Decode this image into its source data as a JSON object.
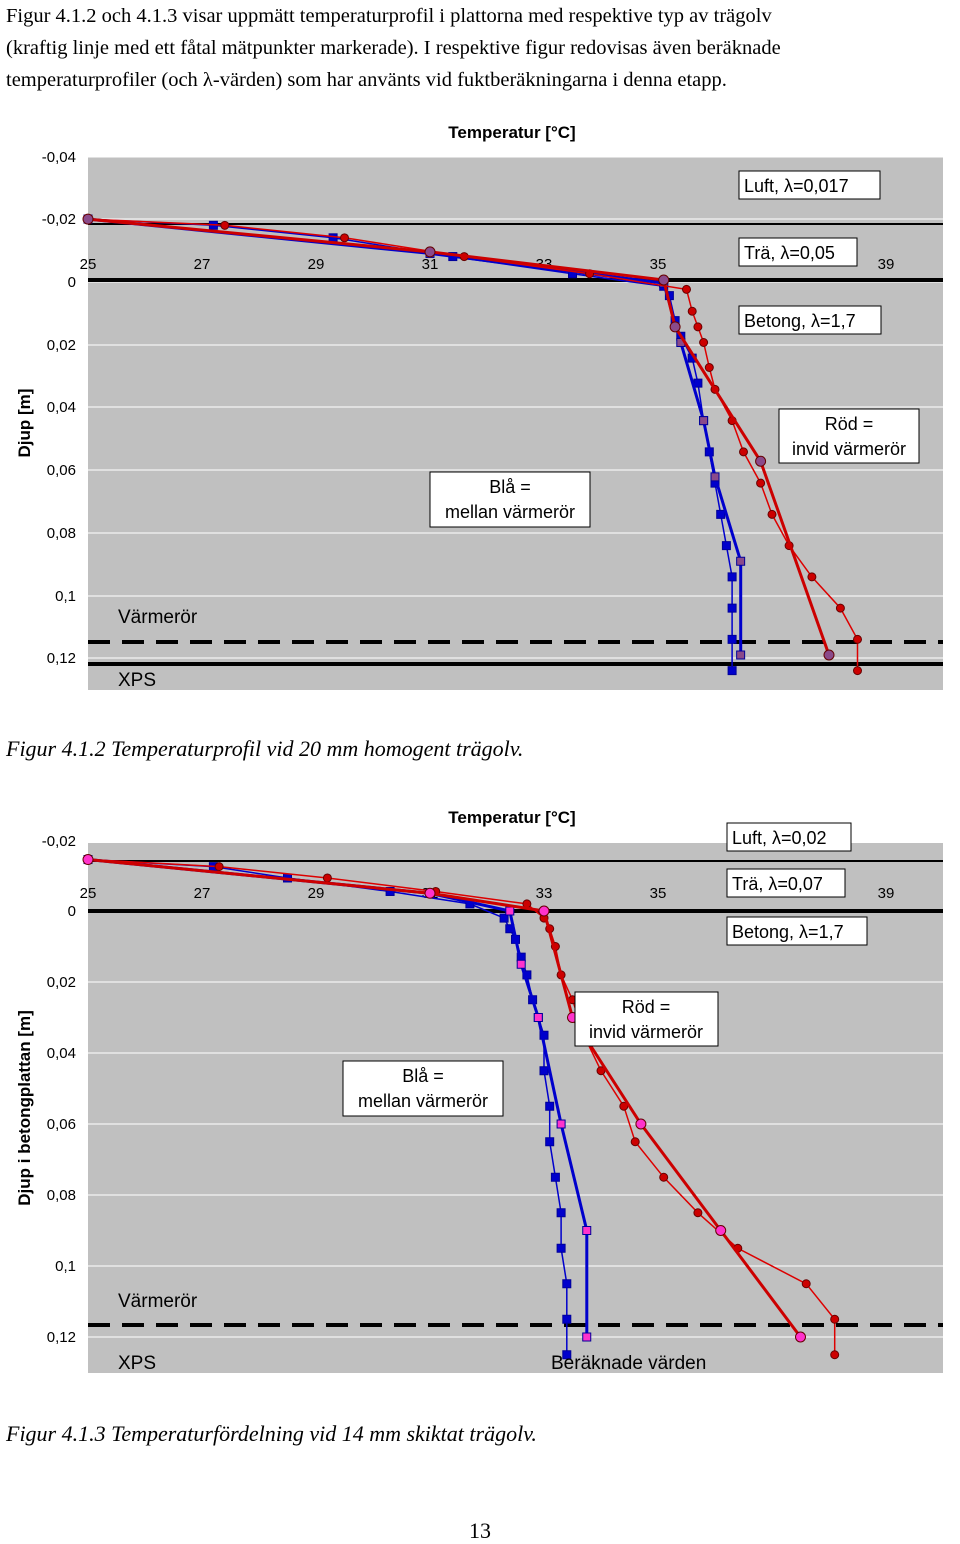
{
  "intro": {
    "lines": [
      "Figur 4.1.2 och 4.1.3 visar uppmätt temperaturprofil i plattorna med respektive typ av trägolv",
      "(kraftig linje med ett fåtal mätpunkter markerade). I respektive figur redovisas även beräknade",
      "temperaturprofiler (och λ-värden) som har använts vid fuktberäkningarna i denna etapp."
    ]
  },
  "figures": [
    {
      "caption": "Figur 4.1.2  Temperaturprofil vid 20 mm homogent trägolv.",
      "labels": {
        "title": "Temperatur [°C]",
        "ylabel": "Djup [m]",
        "luft": "Luft, λ=0,017",
        "tra": "Trä, λ=0,05",
        "betong": "Betong, λ=1,7",
        "red_note_1": "Röd =",
        "red_note_2": "invid värmerör",
        "blue_note_1": "Blå =",
        "blue_note_2": "mellan värmerör",
        "varmeror": "Värmerör",
        "xps": "XPS"
      }
    },
    {
      "caption": "Figur 4.1.3  Temperaturfördelning vid 14 mm skiktat trägolv.",
      "labels": {
        "title": "Temperatur [°C]",
        "ylabel": "Djup i betongplattan [m]",
        "luft": "Luft, λ=0,02",
        "tra": "Trä, λ=0,07",
        "betong": "Betong, λ=1,7",
        "red_note_1": "Röd =",
        "red_note_2": "invid värmerör",
        "blue_note_1": "Blå =",
        "blue_note_2": "mellan värmerör",
        "varmeror": "Värmerör",
        "xps": "XPS",
        "beraknade": "Beräknade värden"
      }
    }
  ],
  "page_number": "13",
  "colors": {
    "plot_bg": "#c0c0c0",
    "grid": "#ffffff",
    "blue": "#0000cc",
    "red": "#dd0000",
    "measured_red": "#cc0000",
    "marker_dark_blue": "#000099",
    "marker_red": "#cc0000",
    "marker_magenta": "#ff33cc",
    "marker_purple": "#8a4a8a"
  },
  "chart_data": [
    {
      "type": "line",
      "title": "Temperatur [°C]",
      "ylabel": "Djup [m]",
      "x_ticks": [
        "25",
        "27",
        "29",
        "31",
        "33",
        "35",
        "39"
      ],
      "y_ticks": [
        "-0,04",
        "-0,02",
        "0",
        "0,02",
        "0,04",
        "0,06",
        "0,08",
        "0,1",
        "0,12"
      ],
      "xlim": [
        25,
        39
      ],
      "ylim": [
        -0.04,
        0.13
      ],
      "y_inverted": true,
      "grid": true,
      "series": [
        {
          "name": "Blå = mellan värmerör",
          "role": "calculated",
          "color": "blue",
          "points": [
            [
              25,
              -0.0195
            ],
            [
              27.2,
              -0.0175
            ],
            [
              29.3,
              -0.0135
            ],
            [
              31.4,
              -0.0075
            ],
            [
              33.5,
              -0.002
            ],
            [
              35.1,
              0.002
            ],
            [
              35.2,
              0.005
            ],
            [
              35.3,
              0.013
            ],
            [
              35.4,
              0.018
            ],
            [
              35.6,
              0.025
            ],
            [
              35.7,
              0.033
            ],
            [
              35.8,
              0.045
            ],
            [
              35.9,
              0.055
            ],
            [
              36.0,
              0.065
            ],
            [
              36.1,
              0.075
            ],
            [
              36.2,
              0.085
            ],
            [
              36.3,
              0.095
            ],
            [
              36.3,
              0.105
            ],
            [
              36.3,
              0.115
            ],
            [
              36.3,
              0.125
            ]
          ]
        },
        {
          "name": "Blå = mellan värmerör",
          "role": "measured",
          "color": "blue",
          "points": [
            [
              25,
              -0.0195
            ],
            [
              31,
              -0.0085
            ],
            [
              35.1,
              0.001
            ],
            [
              35.4,
              0.02
            ],
            [
              35.8,
              0.045
            ],
            [
              36.0,
              0.063
            ],
            [
              36.45,
              0.09
            ],
            [
              36.45,
              0.12
            ]
          ]
        },
        {
          "name": "Röd = invid värmerör",
          "role": "calculated",
          "color": "red",
          "points": [
            [
              25,
              -0.0195
            ],
            [
              27.4,
              -0.0175
            ],
            [
              29.5,
              -0.0135
            ],
            [
              31.6,
              -0.0075
            ],
            [
              33.8,
              -0.002
            ],
            [
              35.5,
              0.003
            ],
            [
              35.6,
              0.01
            ],
            [
              35.7,
              0.015
            ],
            [
              35.8,
              0.02
            ],
            [
              35.9,
              0.028
            ],
            [
              36.0,
              0.035
            ],
            [
              36.3,
              0.045
            ],
            [
              36.5,
              0.055
            ],
            [
              36.8,
              0.065
            ],
            [
              37.0,
              0.075
            ],
            [
              37.3,
              0.085
            ],
            [
              37.7,
              0.095
            ],
            [
              38.2,
              0.105
            ],
            [
              38.5,
              0.115
            ],
            [
              38.5,
              0.125
            ]
          ]
        },
        {
          "name": "Röd = invid värmerör",
          "role": "measured",
          "color": "red",
          "points": [
            [
              25,
              -0.0195
            ],
            [
              31,
              -0.009
            ],
            [
              35.1,
              0.0
            ],
            [
              35.3,
              0.015
            ],
            [
              36.8,
              0.058
            ],
            [
              38.0,
              0.12
            ]
          ]
        }
      ],
      "annotations": [
        "Luft, λ=0,017",
        "Trä, λ=0,05",
        "Betong, λ=1,7",
        "Röd = invid värmerör",
        "Blå = mellan värmerör",
        "Värmerör",
        "XPS"
      ]
    },
    {
      "type": "line",
      "title": "Temperatur [°C]",
      "ylabel": "Djup i betongplattan [m]",
      "x_ticks": [
        "25",
        "27",
        "29",
        "31",
        "33",
        "35",
        "39"
      ],
      "y_ticks": [
        "-0,02",
        "0",
        "0,02",
        "0,04",
        "0,06",
        "0,08",
        "0,1",
        "0,12"
      ],
      "xlim": [
        25,
        39
      ],
      "ylim": [
        -0.02,
        0.13
      ],
      "y_inverted": true,
      "grid": true,
      "series": [
        {
          "name": "Blå = mellan värmerör",
          "role": "calculated",
          "color": "blue",
          "points": [
            [
              25,
              -0.0145
            ],
            [
              27.2,
              -0.0125
            ],
            [
              28.5,
              -0.0093
            ],
            [
              30.3,
              -0.0055
            ],
            [
              31.7,
              -0.002
            ],
            [
              32.3,
              0.002
            ],
            [
              32.4,
              0.005
            ],
            [
              32.5,
              0.008
            ],
            [
              32.6,
              0.013
            ],
            [
              32.7,
              0.018
            ],
            [
              32.8,
              0.025
            ],
            [
              32.9,
              0.03
            ],
            [
              33.0,
              0.035
            ],
            [
              33.0,
              0.045
            ],
            [
              33.1,
              0.055
            ],
            [
              33.1,
              0.065
            ],
            [
              33.2,
              0.075
            ],
            [
              33.3,
              0.085
            ],
            [
              33.3,
              0.095
            ],
            [
              33.4,
              0.105
            ],
            [
              33.4,
              0.115
            ],
            [
              33.4,
              0.125
            ]
          ]
        },
        {
          "name": "Blå = mellan värmerör",
          "role": "measured",
          "color": "blue",
          "points": [
            [
              25,
              -0.0145
            ],
            [
              31,
              -0.005
            ],
            [
              32.4,
              0.0
            ],
            [
              32.6,
              0.015
            ],
            [
              32.9,
              0.03
            ],
            [
              33.3,
              0.06
            ],
            [
              33.75,
              0.09
            ],
            [
              33.75,
              0.12
            ]
          ]
        },
        {
          "name": "Röd = invid värmerör",
          "role": "calculated",
          "color": "red",
          "points": [
            [
              25,
              -0.0145
            ],
            [
              27.3,
              -0.0125
            ],
            [
              29.2,
              -0.0093
            ],
            [
              31.1,
              -0.0055
            ],
            [
              32.7,
              -0.002
            ],
            [
              33.0,
              0.002
            ],
            [
              33.1,
              0.005
            ],
            [
              33.2,
              0.01
            ],
            [
              33.3,
              0.018
            ],
            [
              33.5,
              0.025
            ],
            [
              33.7,
              0.035
            ],
            [
              34.0,
              0.045
            ],
            [
              34.4,
              0.055
            ],
            [
              34.6,
              0.065
            ],
            [
              35.1,
              0.075
            ],
            [
              35.7,
              0.085
            ],
            [
              36.4,
              0.095
            ],
            [
              37.6,
              0.105
            ],
            [
              38.1,
              0.115
            ],
            [
              38.1,
              0.125
            ]
          ]
        },
        {
          "name": "Röd = invid värmerör",
          "role": "measured",
          "color": "red",
          "points": [
            [
              25,
              -0.0145
            ],
            [
              31,
              -0.005
            ],
            [
              33.0,
              0.0
            ],
            [
              33.5,
              0.03
            ],
            [
              34.7,
              0.06
            ],
            [
              36.1,
              0.09
            ],
            [
              37.5,
              0.12
            ]
          ]
        }
      ],
      "annotations": [
        "Luft, λ=0,02",
        "Trä, λ=0,07",
        "Betong, λ=1,7",
        "Röd = invid värmerör",
        "Blå = mellan värmerör",
        "Värmerör",
        "XPS",
        "Beräknade värden"
      ]
    }
  ]
}
